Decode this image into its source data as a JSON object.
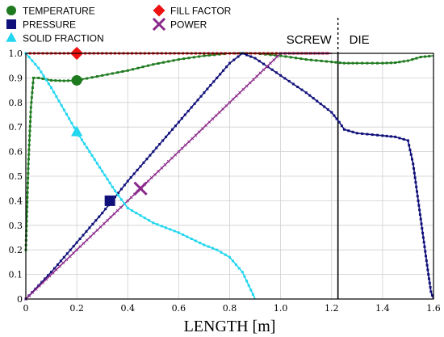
{
  "chart_data": {
    "type": "line",
    "xlabel": "LENGTH [m]",
    "ylabel": "",
    "xlim": [
      0,
      1.6
    ],
    "ylim": [
      0,
      1.0
    ],
    "x_ticks": [
      "0",
      "0.2",
      "0.4",
      "0.6",
      "0.8",
      "1.0",
      "1.2",
      "1.4",
      "1.6"
    ],
    "y_ticks": [
      "0",
      "0.1",
      "0.2",
      "0.3",
      "0.4",
      "0.5",
      "0.6",
      "0.7",
      "0.8",
      "0.9",
      "1.0"
    ],
    "grid": true,
    "legend_position": "top-left",
    "regions": [
      {
        "label": "SCREW"
      },
      {
        "label": "DIE"
      }
    ],
    "divider_x": 1.225,
    "series": [
      {
        "name": "TEMPERATURE",
        "color": "#1e7a1e",
        "marker": "circle",
        "marker_point": [
          0.2,
          0.89
        ],
        "x": [
          0.0,
          0.01,
          0.02,
          0.03,
          0.05,
          0.1,
          0.15,
          0.2,
          0.3,
          0.4,
          0.5,
          0.6,
          0.7,
          0.8,
          0.9,
          1.0,
          1.1,
          1.2,
          1.25,
          1.3,
          1.4,
          1.45,
          1.5,
          1.55,
          1.6
        ],
        "y": [
          0.2,
          0.55,
          0.78,
          0.9,
          0.9,
          0.89,
          0.888,
          0.89,
          0.91,
          0.93,
          0.955,
          0.975,
          0.99,
          1.0,
          1.0,
          0.99,
          0.975,
          0.965,
          0.96,
          0.96,
          0.96,
          0.962,
          0.97,
          0.985,
          0.99
        ]
      },
      {
        "name": "FILL FACTOR",
        "color": "#ee1111",
        "marker": "diamond",
        "marker_point": [
          0.2,
          1.0
        ],
        "x": [
          0.0,
          0.05,
          0.1,
          0.15,
          0.2,
          0.25,
          0.3,
          0.35,
          0.4,
          0.45,
          0.5,
          0.55,
          0.6,
          0.65,
          0.7,
          0.75,
          0.8,
          0.85,
          0.9,
          0.95,
          1.0,
          1.05,
          1.1,
          1.15,
          1.2
        ],
        "y": [
          1.0,
          1.0,
          1.0,
          1.0,
          1.0,
          1.0,
          1.0,
          1.0,
          1.0,
          1.0,
          1.0,
          1.0,
          1.0,
          1.0,
          1.0,
          1.0,
          1.0,
          1.0,
          1.0,
          1.0,
          1.0,
          1.0,
          1.0,
          1.0,
          1.0
        ]
      },
      {
        "name": "PRESSURE",
        "color": "#10107a",
        "marker": "square",
        "marker_point": [
          0.33,
          0.4
        ],
        "x": [
          0.0,
          0.1,
          0.2,
          0.3,
          0.4,
          0.5,
          0.6,
          0.7,
          0.8,
          0.85,
          0.9,
          1.0,
          1.1,
          1.2,
          1.23,
          1.25,
          1.3,
          1.4,
          1.45,
          1.5,
          1.52,
          1.54,
          1.56,
          1.58,
          1.59,
          1.6
        ],
        "y": [
          0.0,
          0.11,
          0.23,
          0.35,
          0.48,
          0.6,
          0.72,
          0.84,
          0.96,
          1.0,
          0.98,
          0.91,
          0.84,
          0.76,
          0.72,
          0.69,
          0.675,
          0.665,
          0.66,
          0.645,
          0.55,
          0.4,
          0.25,
          0.1,
          0.03,
          0.0
        ]
      },
      {
        "name": "POWER",
        "color": "#8a2a8a",
        "marker": "x",
        "marker_point": [
          0.45,
          0.45
        ],
        "x": [
          0.0,
          0.2,
          0.4,
          0.6,
          0.8,
          1.0,
          1.2
        ],
        "y": [
          0.0,
          0.2,
          0.4,
          0.6,
          0.8,
          1.0,
          1.0
        ]
      },
      {
        "name": "SOLID FRACTION",
        "color": "#22d6f0",
        "marker": "triangle",
        "marker_point": [
          0.2,
          0.68
        ],
        "x": [
          0.0,
          0.05,
          0.1,
          0.15,
          0.2,
          0.25,
          0.3,
          0.35,
          0.4,
          0.45,
          0.5,
          0.6,
          0.7,
          0.75,
          0.8,
          0.85,
          0.9
        ],
        "y": [
          1.0,
          0.94,
          0.86,
          0.77,
          0.68,
          0.6,
          0.52,
          0.44,
          0.37,
          0.34,
          0.31,
          0.27,
          0.22,
          0.2,
          0.17,
          0.11,
          0.0
        ]
      }
    ]
  }
}
